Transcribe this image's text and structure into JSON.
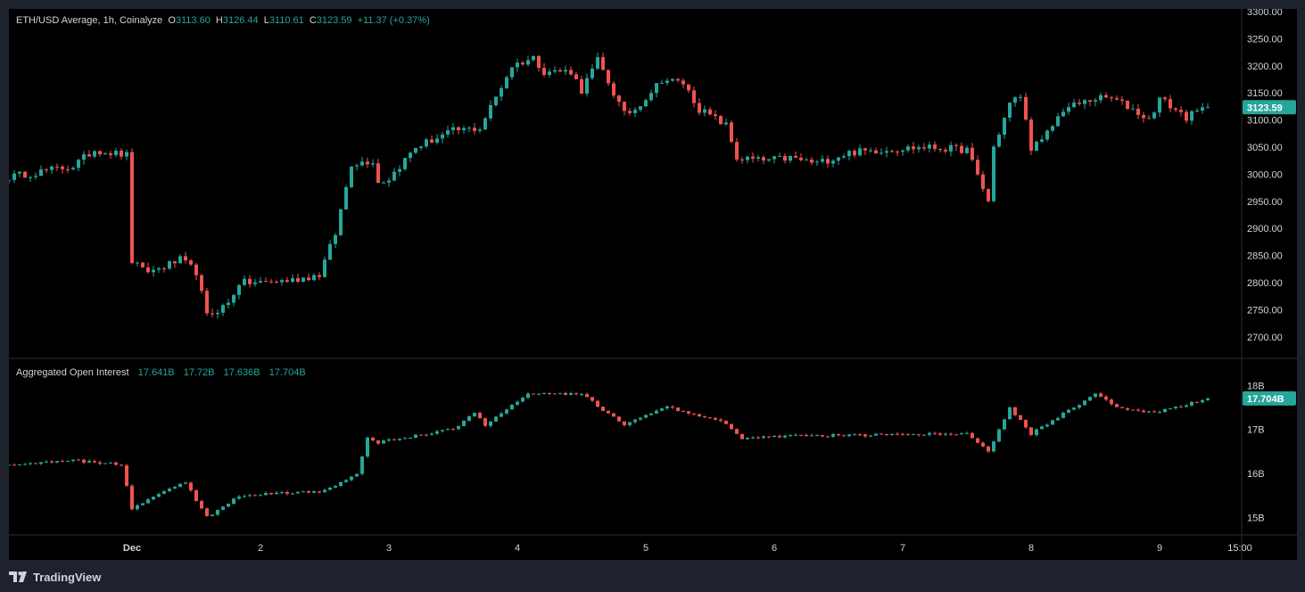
{
  "price_legend": {
    "title": "ETH/USD Average, 1h, Coinalyze",
    "o_label": "O",
    "o_value": "3113.60",
    "h_label": "H",
    "h_value": "3126.44",
    "l_label": "L",
    "l_value": "3110.61",
    "c_label": "C",
    "c_value": "3123.59",
    "change": "+11.37 (+0.37%)"
  },
  "oi_legend": {
    "title": "Aggregated Open Interest",
    "v1": "17.641B",
    "v2": "17.72B",
    "v3": "17.636B",
    "v4": "17.704B"
  },
  "footer": {
    "brand": "TradingView"
  },
  "colors": {
    "up": "#26a69a",
    "down": "#ef5350",
    "background": "#000000",
    "frame": "#1e222d",
    "text": "#d1d4dc",
    "grid_line": "#2a2e39"
  },
  "chart_data": [
    {
      "type": "candlestick",
      "title": "ETH/USD Average, 1h, Coinalyze",
      "ylim": [
        2680,
        3300
      ],
      "yticks": [
        "3300.00",
        "3250.00",
        "3200.00",
        "3150.00",
        "3100.00",
        "3050.00",
        "3000.00",
        "2950.00",
        "2900.00",
        "2850.00",
        "2800.00",
        "2750.00",
        "2700.00"
      ],
      "last_value": "3123.59",
      "x_tick_labels": [
        "Dec",
        "2",
        "3",
        "4",
        "5",
        "6",
        "7",
        "8",
        "9",
        "15:00"
      ],
      "anchors": [
        [
          "Nov 30 01:00",
          2995
        ],
        [
          "Nov 30 13:00",
          3015
        ],
        [
          "Nov 30 17:00",
          3045
        ],
        [
          "Nov 30 23:00",
          3035
        ],
        [
          "Dec 1 00:00",
          2840
        ],
        [
          "Dec 1 02:00",
          2822
        ],
        [
          "Dec 1 04:00",
          2822
        ],
        [
          "Dec 1 09:00",
          2842
        ],
        [
          "Dec 1 12:00",
          2820
        ],
        [
          "Dec 1 14:00",
          2738
        ],
        [
          "Dec 1 18:00",
          2762
        ],
        [
          "Dec 1 20:00",
          2800
        ],
        [
          "Dec 2 00:00",
          2800
        ],
        [
          "Dec 2 06:00",
          2805
        ],
        [
          "Dec 2 11:00",
          2815
        ],
        [
          "Dec 2 14:00",
          2890
        ],
        [
          "Dec 2 17:00",
          3020
        ],
        [
          "Dec 2 21:00",
          3025
        ],
        [
          "Dec 2 22:00",
          2985
        ],
        [
          "Dec 3 00:00",
          2992
        ],
        [
          "Dec 3 05:00",
          3050
        ],
        [
          "Dec 3 12:00",
          3080
        ],
        [
          "Dec 3 17:00",
          3085
        ],
        [
          "Dec 3 23:00",
          3200
        ],
        [
          "Dec 4 03:00",
          3215
        ],
        [
          "Dec 4 05:00",
          3190
        ],
        [
          "Dec 4 10:00",
          3190
        ],
        [
          "Dec 4 12:00",
          3155
        ],
        [
          "Dec 4 15:00",
          3210
        ],
        [
          "Dec 4 20:00",
          3110
        ],
        [
          "Dec 4 22:00",
          3120
        ],
        [
          "Dec 5 03:00",
          3175
        ],
        [
          "Dec 5 07:00",
          3168
        ],
        [
          "Dec 5 10:00",
          3120
        ],
        [
          "Dec 5 15:00",
          3090
        ],
        [
          "Dec 5 17:00",
          3030
        ],
        [
          "Dec 5 22:00",
          3025
        ],
        [
          "Dec 6 03:00",
          3030
        ],
        [
          "Dec 6 08:00",
          3020
        ],
        [
          "Dec 6 14:00",
          3040
        ],
        [
          "Dec 6 20:00",
          3045
        ],
        [
          "Dec 7 04:00",
          3050
        ],
        [
          "Dec 7 12:00",
          3045
        ],
        [
          "Dec 7 16:00",
          2950
        ],
        [
          "Dec 7 17:00",
          3050
        ],
        [
          "Dec 7 20:00",
          3130
        ],
        [
          "Dec 7 22:00",
          3145
        ],
        [
          "Dec 8 00:00",
          3050
        ],
        [
          "Dec 8 02:00",
          3060
        ],
        [
          "Dec 8 06:00",
          3120
        ],
        [
          "Dec 8 12:00",
          3140
        ],
        [
          "Dec 8 15:00",
          3140
        ],
        [
          "Dec 8 19:00",
          3120
        ],
        [
          "Dec 8 22:00",
          3100
        ],
        [
          "Dec 9 00:00",
          3140
        ],
        [
          "Dec 9 05:00",
          3105
        ],
        [
          "Dec 9 09:00",
          3123.59
        ]
      ]
    },
    {
      "type": "candlestick",
      "title": "Aggregated Open Interest",
      "ylim": [
        14.6,
        18.35
      ],
      "yticks": [
        "18B",
        "17B",
        "16B",
        "15B"
      ],
      "last_value": "17.704B",
      "anchors": [
        [
          "Nov 30 01:00",
          16.2
        ],
        [
          "Nov 30 12:00",
          16.3
        ],
        [
          "Nov 30 22:00",
          16.2
        ],
        [
          "Dec 1 00:00",
          15.2
        ],
        [
          "Dec 1 06:00",
          15.6
        ],
        [
          "Dec 1 10:00",
          15.8
        ],
        [
          "Dec 1 14:00",
          15.0
        ],
        [
          "Dec 1 20:00",
          15.5
        ],
        [
          "Dec 2 12:00",
          15.6
        ],
        [
          "Dec 2 18:00",
          16.0
        ],
        [
          "Dec 2 20:00",
          16.8
        ],
        [
          "Dec 2 22:00",
          16.7
        ],
        [
          "Dec 3 12:00",
          17.0
        ],
        [
          "Dec 3 16:00",
          17.4
        ],
        [
          "Dec 3 18:00",
          17.1
        ],
        [
          "Dec 4 02:00",
          17.8
        ],
        [
          "Dec 4 12:00",
          17.8
        ],
        [
          "Dec 4 20:00",
          17.1
        ],
        [
          "Dec 5 04:00",
          17.5
        ],
        [
          "Dec 5 14:00",
          17.2
        ],
        [
          "Dec 5 18:00",
          16.8
        ],
        [
          "Dec 6 02:00",
          16.85
        ],
        [
          "Dec 7 12:00",
          16.9
        ],
        [
          "Dec 7 16:00",
          16.5
        ],
        [
          "Dec 7 20:00",
          17.5
        ],
        [
          "Dec 8 00:00",
          16.9
        ],
        [
          "Dec 8 12:00",
          17.8
        ],
        [
          "Dec 8 16:00",
          17.5
        ],
        [
          "Dec 8 20:00",
          17.4
        ],
        [
          "Dec 9 00:00",
          17.4
        ],
        [
          "Dec 9 09:00",
          17.704
        ]
      ]
    }
  ]
}
